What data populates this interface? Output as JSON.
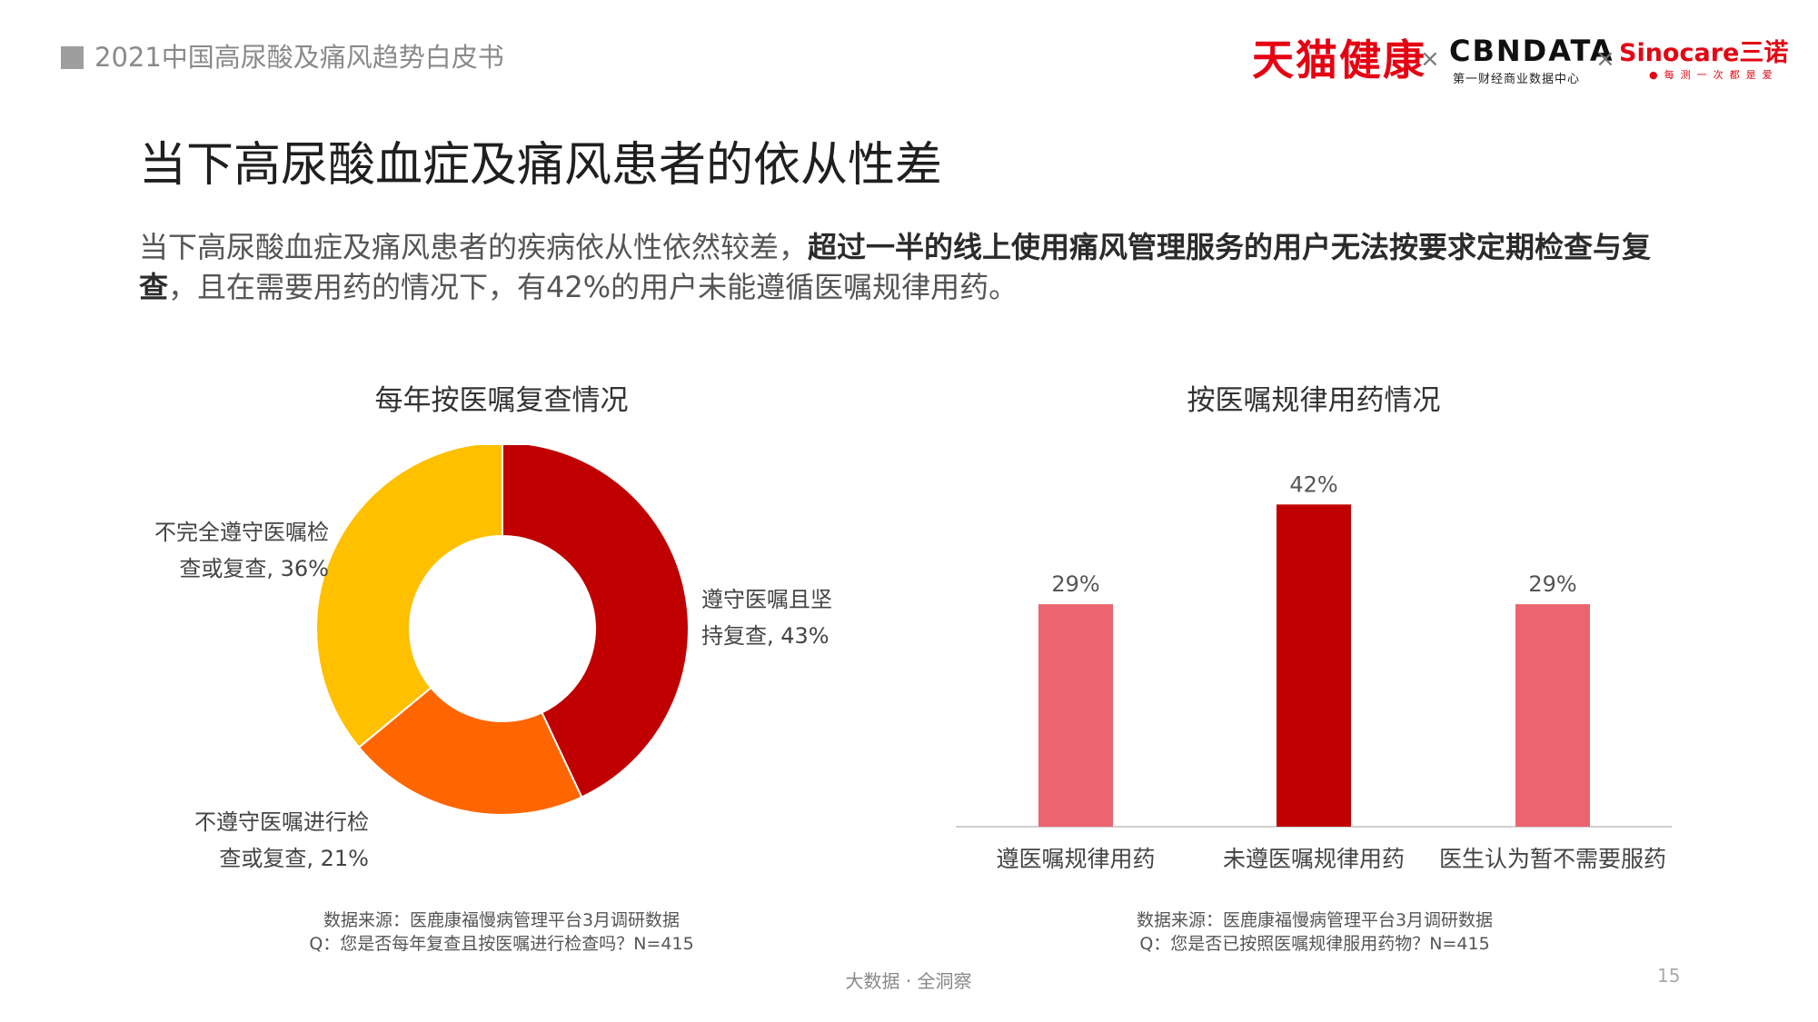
{
  "header": {
    "title": "2021中国高尿酸及痛风趋势白皮书",
    "logos": {
      "tmall": "天猫健康",
      "cross": "×",
      "cbn": "CBNDATA",
      "cbn_sub": "第一财经商业数据中心",
      "sino": "Sinocare三诺",
      "sino_sub": "●每测一次都是爱"
    }
  },
  "slide": {
    "title": "当下高尿酸血症及痛风患者的依从性差",
    "desc_part1": "当下高尿酸血症及痛风患者的疾病依从性依然较差，",
    "desc_bold": "超过一半的线上使用痛风管理服务的用户无法按要求定期检查与复查",
    "desc_part2": "，且在需要用药的情况下，有42%的用户未能遵循医嘱规律用药。"
  },
  "colors": {
    "dark_red": "#c00000",
    "orange": "#ff6600",
    "yellow": "#ffc000",
    "pink": "#ec6470",
    "bar_dark": "#c00000"
  },
  "chart_data": [
    {
      "type": "pie",
      "donut": true,
      "title": "每年按医嘱复查情况",
      "slices": [
        {
          "label_line1": "遵守医嘱且坚",
          "label_line2": "持复查, 43%",
          "value": 43,
          "color": "#c00000"
        },
        {
          "label_line1": "不遵守医嘱进行检",
          "label_line2": "查或复查, 21%",
          "value": 21,
          "color": "#ff6600"
        },
        {
          "label_line1": "不完全遵守医嘱检",
          "label_line2": "查或复查, 36%",
          "value": 36,
          "color": "#ffc000"
        }
      ],
      "source_line1": "数据来源：医鹿康福慢病管理平台3月调研数据",
      "source_line2": "Q：您是否每年复查且按医嘱进行检查吗？N=415"
    },
    {
      "type": "bar",
      "title": "按医嘱规律用药情况",
      "categories": [
        "遵医嘱规律用药",
        "未遵医嘱规律用药",
        "医生认为暂不需要服药"
      ],
      "values": [
        29,
        42,
        29
      ],
      "value_labels": [
        "29%",
        "42%",
        "29%"
      ],
      "colors": [
        "#ec6470",
        "#c00000",
        "#ec6470"
      ],
      "ylim": [
        0,
        45
      ],
      "source_line1": "数据来源：医鹿康福慢病管理平台3月调研数据",
      "source_line2": "Q：您是否已按照医嘱规律服用药物？N=415"
    }
  ],
  "footer": {
    "tagline": "大数据 · 全洞察",
    "page": "15"
  }
}
